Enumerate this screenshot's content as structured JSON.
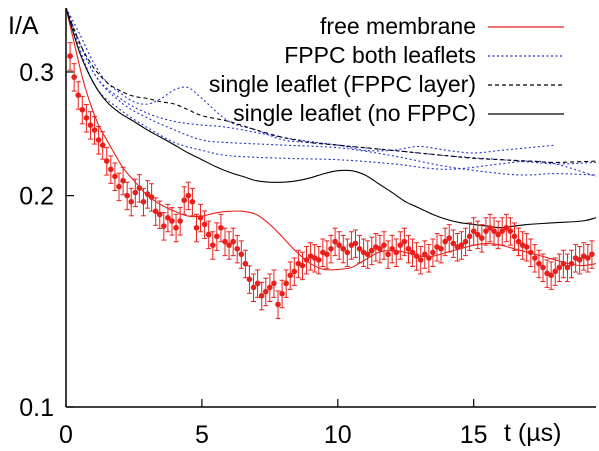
{
  "chart_data": {
    "type": "line",
    "title": "",
    "xlabel": "t (µs)",
    "ylabel": "I/A",
    "xlim": [
      0,
      19.5
    ],
    "ylim": [
      0.1,
      0.37
    ],
    "y_scale": "log",
    "grid": false,
    "legend_position": "top-right",
    "x_ticks": [
      0,
      5,
      10,
      15
    ],
    "x_tick_labels": [
      "0",
      "5",
      "10",
      "15"
    ],
    "y_ticks": [
      0.1,
      0.2,
      0.3
    ],
    "y_tick_labels": [
      "0.1",
      "0.2",
      "0.3"
    ],
    "series": [
      {
        "name": "free membrane",
        "color": "#e8201c",
        "style": "solid",
        "x": [
          0.0,
          0.3,
          0.6,
          0.9,
          1.2,
          1.5,
          1.8,
          2.1,
          2.5,
          3.0,
          3.5,
          4.0,
          4.5,
          5.0,
          5.5,
          6.0,
          6.5,
          7.0,
          7.5,
          8.0,
          8.5,
          9.0,
          9.5,
          10.0,
          10.5,
          11.0,
          11.5,
          12.0,
          12.5,
          13.0,
          13.5,
          14.0,
          14.5,
          15.0,
          15.5,
          16.0,
          16.5,
          17.0,
          17.5,
          18.0,
          18.5,
          19.0,
          19.5
        ],
        "values": [
          0.37,
          0.33,
          0.295,
          0.27,
          0.252,
          0.24,
          0.229,
          0.219,
          0.21,
          0.2,
          0.194,
          0.19,
          0.187,
          0.187,
          0.189,
          0.19,
          0.19,
          0.188,
          0.182,
          0.174,
          0.166,
          0.16,
          0.157,
          0.157,
          0.158,
          0.162,
          0.166,
          0.167,
          0.166,
          0.164,
          0.164,
          0.166,
          0.168,
          0.17,
          0.171,
          0.17,
          0.168,
          0.166,
          0.164,
          0.162,
          0.16,
          0.159,
          0.16
        ]
      },
      {
        "name": "FPPC both leaflets",
        "color": "#2233cc",
        "style": "dotted",
        "x": [
          0.0,
          0.5,
          1.0,
          1.5,
          2.0,
          2.5,
          3.0,
          3.5,
          4.0,
          4.5,
          5.0,
          6.0,
          7.0,
          8.0,
          9.0,
          10.0,
          11.0,
          12.0,
          13.0,
          14.0,
          15.0,
          16.0,
          17.0,
          18.0
        ],
        "values": [
          0.37,
          0.34,
          0.31,
          0.29,
          0.28,
          0.272,
          0.27,
          0.275,
          0.283,
          0.285,
          0.275,
          0.255,
          0.248,
          0.24,
          0.238,
          0.236,
          0.232,
          0.232,
          0.235,
          0.232,
          0.23,
          0.232,
          0.234,
          0.236
        ],
        "extra_curves": [
          {
            "x": [
              0.0,
              1.0,
              2.0,
              3.0,
              4.0,
              5.0,
              6.0,
              8.0,
              10.0,
              12.0,
              14.0,
              16.0,
              18.0,
              19.5
            ],
            "values": [
              0.37,
              0.3,
              0.275,
              0.262,
              0.255,
              0.252,
              0.25,
              0.242,
              0.236,
              0.232,
              0.228,
              0.225,
              0.222,
              0.223
            ]
          },
          {
            "x": [
              0.0,
              1.0,
              2.0,
              3.0,
              4.0,
              5.0,
              6.0,
              8.0,
              10.0,
              12.0,
              14.0,
              16.0,
              17.0,
              18.0,
              19.5
            ],
            "values": [
              0.37,
              0.3,
              0.272,
              0.258,
              0.248,
              0.24,
              0.238,
              0.236,
              0.234,
              0.228,
              0.22,
              0.215,
              0.214,
              0.215,
              0.214
            ]
          },
          {
            "x": [
              0.0,
              1.0,
              2.0,
              3.0,
              4.0,
              5.0,
              6.0,
              8.0,
              10.0,
              12.0,
              14.0,
              16.0,
              17.0,
              18.0,
              19.5
            ],
            "values": [
              0.37,
              0.29,
              0.265,
              0.25,
              0.238,
              0.232,
              0.228,
              0.226,
              0.225,
              0.222,
              0.218,
              0.222,
              0.224,
              0.222,
              0.213
            ]
          }
        ]
      },
      {
        "name": "single leaflet (FPPC layer)",
        "color": "#000000",
        "style": "dashed",
        "x": [
          0.0,
          0.5,
          1.0,
          1.5,
          2.0,
          2.5,
          3.0,
          3.5,
          4.0,
          4.5,
          5.0,
          6.0,
          7.0,
          8.0,
          9.0,
          10.0,
          11.0,
          12.0,
          13.0,
          14.0,
          15.0,
          16.0,
          17.0,
          18.0,
          19.5
        ],
        "values": [
          0.37,
          0.33,
          0.305,
          0.29,
          0.282,
          0.277,
          0.275,
          0.272,
          0.27,
          0.265,
          0.26,
          0.255,
          0.248,
          0.242,
          0.238,
          0.236,
          0.234,
          0.232,
          0.23,
          0.228,
          0.226,
          0.225,
          0.224,
          0.223,
          0.224
        ]
      },
      {
        "name": "single leaflet (no FPPC)",
        "color": "#000000",
        "style": "solid",
        "x": [
          0.0,
          0.5,
          1.0,
          1.5,
          2.0,
          2.5,
          3.0,
          3.5,
          4.0,
          4.5,
          5.0,
          5.5,
          6.0,
          6.5,
          7.0,
          7.5,
          8.0,
          8.5,
          9.0,
          9.5,
          10.0,
          10.5,
          11.0,
          11.5,
          12.0,
          12.5,
          13.0,
          13.5,
          14.0,
          14.5,
          15.0,
          15.5,
          16.0,
          16.5,
          17.0,
          18.0,
          19.0,
          19.5
        ],
        "values": [
          0.37,
          0.32,
          0.29,
          0.272,
          0.262,
          0.255,
          0.248,
          0.242,
          0.236,
          0.23,
          0.225,
          0.22,
          0.216,
          0.213,
          0.21,
          0.209,
          0.209,
          0.21,
          0.212,
          0.215,
          0.217,
          0.217,
          0.214,
          0.208,
          0.202,
          0.196,
          0.192,
          0.188,
          0.185,
          0.183,
          0.182,
          0.181,
          0.18,
          0.181,
          0.182,
          0.183,
          0.184,
          0.186
        ]
      },
      {
        "name": "",
        "role": "measured points (free membrane)",
        "color": "#e8201c",
        "style": "points-with-errorbars",
        "x": [
          0.15,
          0.3,
          0.45,
          0.6,
          0.75,
          0.9,
          1.05,
          1.2,
          1.35,
          1.5,
          1.65,
          1.8,
          1.95,
          2.1,
          2.25,
          2.4,
          2.55,
          2.7,
          2.85,
          3.0,
          3.15,
          3.3,
          3.45,
          3.6,
          3.75,
          3.9,
          4.05,
          4.2,
          4.35,
          4.5,
          4.65,
          4.8,
          4.95,
          5.1,
          5.25,
          5.4,
          5.55,
          5.7,
          5.85,
          6.0,
          6.15,
          6.3,
          6.45,
          6.6,
          6.75,
          6.9,
          7.05,
          7.2,
          7.35,
          7.5,
          7.65,
          7.8,
          7.95,
          8.1,
          8.25,
          8.4,
          8.55,
          8.7,
          8.85,
          9.0,
          9.15,
          9.3,
          9.45,
          9.6,
          9.75,
          9.9,
          10.05,
          10.2,
          10.35,
          10.5,
          10.65,
          10.8,
          10.95,
          11.1,
          11.25,
          11.4,
          11.55,
          11.7,
          11.85,
          12.0,
          12.15,
          12.3,
          12.45,
          12.6,
          12.75,
          12.9,
          13.05,
          13.2,
          13.35,
          13.5,
          13.65,
          13.8,
          13.95,
          14.1,
          14.25,
          14.4,
          14.55,
          14.7,
          14.85,
          15.0,
          15.15,
          15.3,
          15.45,
          15.6,
          15.75,
          15.9,
          16.05,
          16.2,
          16.35,
          16.5,
          16.65,
          16.8,
          16.95,
          17.1,
          17.25,
          17.4,
          17.55,
          17.7,
          17.85,
          18.0,
          18.15,
          18.3,
          18.45,
          18.6,
          18.75,
          18.9,
          19.05,
          19.2,
          19.35
        ],
        "values": [
          0.316,
          0.295,
          0.278,
          0.265,
          0.258,
          0.252,
          0.248,
          0.24,
          0.236,
          0.224,
          0.218,
          0.213,
          0.206,
          0.21,
          0.2,
          0.196,
          0.202,
          0.205,
          0.196,
          0.201,
          0.199,
          0.19,
          0.188,
          0.181,
          0.186,
          0.184,
          0.18,
          0.184,
          0.197,
          0.2,
          0.196,
          0.18,
          0.186,
          0.182,
          0.176,
          0.17,
          0.175,
          0.18,
          0.172,
          0.17,
          0.172,
          0.168,
          0.165,
          0.16,
          0.152,
          0.148,
          0.15,
          0.144,
          0.146,
          0.148,
          0.15,
          0.14,
          0.145,
          0.15,
          0.154,
          0.156,
          0.16,
          0.159,
          0.162,
          0.164,
          0.163,
          0.162,
          0.166,
          0.165,
          0.168,
          0.172,
          0.17,
          0.168,
          0.166,
          0.17,
          0.171,
          0.168,
          0.166,
          0.165,
          0.167,
          0.169,
          0.168,
          0.17,
          0.165,
          0.168,
          0.166,
          0.17,
          0.172,
          0.168,
          0.166,
          0.164,
          0.162,
          0.165,
          0.163,
          0.166,
          0.169,
          0.168,
          0.172,
          0.174,
          0.171,
          0.169,
          0.17,
          0.172,
          0.175,
          0.178,
          0.176,
          0.174,
          0.178,
          0.18,
          0.178,
          0.176,
          0.178,
          0.18,
          0.178,
          0.175,
          0.172,
          0.17,
          0.169,
          0.166,
          0.163,
          0.16,
          0.158,
          0.155,
          0.154,
          0.156,
          0.158,
          0.16,
          0.158,
          0.16,
          0.163,
          0.162,
          0.164,
          0.163,
          0.165
        ]
      }
    ]
  }
}
